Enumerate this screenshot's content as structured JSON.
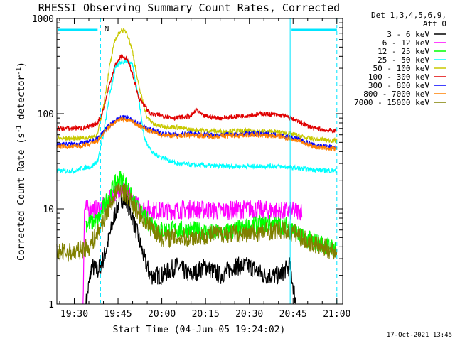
{
  "chart_data": {
    "type": "line",
    "title": "RHESSI Observing Summary Count Rates, Corrected",
    "xlabel": "Start Time (04-Jun-05 19:24:02)",
    "ylabel": "Corrected Count Rate (s",
    "ylabel_sup1": "-1",
    "ylabel_mid": " detector",
    "ylabel_sup2": "-1",
    "ylabel_end": ")",
    "y_scale": "log",
    "ylim": [
      1,
      1000
    ],
    "xlim": [
      "19:24:02",
      "21:02:00"
    ],
    "x_ticks": [
      "19:30",
      "19:45",
      "20:00",
      "20:15",
      "20:30",
      "20:45",
      "21:00"
    ],
    "y_ticks": [
      "1",
      "10",
      "100",
      "1000"
    ],
    "legend_header": [
      "Det 1,3,4,5,6,9,",
      "Att 0"
    ],
    "legend_position": "right",
    "annotations": {
      "attenuator_marker": "N",
      "timestamp": "17-Oct-2021 13:45"
    },
    "markers": {
      "dashed_verticals": [
        "19:39",
        "21:00"
      ],
      "solid_verticals": [
        "20:44"
      ],
      "top_bars": [
        [
          "19:24",
          "19:38"
        ],
        [
          "20:44",
          "21:00"
        ]
      ]
    },
    "series": [
      {
        "name": "3 - 6 keV",
        "color": "#000000",
        "points": [
          [
            "19:34",
            1.0
          ],
          [
            "19:36",
            2.5
          ],
          [
            "19:38",
            2.2
          ],
          [
            "19:40",
            3.0
          ],
          [
            "19:42",
            5.0
          ],
          [
            "19:44",
            9.0
          ],
          [
            "19:46",
            13.0
          ],
          [
            "19:48",
            12.0
          ],
          [
            "19:50",
            8.0
          ],
          [
            "19:52",
            5.0
          ],
          [
            "19:54",
            3.0
          ],
          [
            "19:56",
            2.0
          ],
          [
            "20:00",
            2.0
          ],
          [
            "20:05",
            2.5
          ],
          [
            "20:10",
            2.0
          ],
          [
            "20:15",
            2.5
          ],
          [
            "20:20",
            2.0
          ],
          [
            "20:25",
            2.5
          ],
          [
            "20:30",
            2.5
          ],
          [
            "20:35",
            2.0
          ],
          [
            "20:40",
            2.0
          ],
          [
            "20:44",
            2.5
          ],
          [
            "20:46",
            1.0
          ]
        ]
      },
      {
        "name": "6 - 12 keV",
        "color": "#ff00ff",
        "points": [
          [
            "19:33",
            1.0
          ],
          [
            "19:33.5",
            10.0
          ],
          [
            "19:38",
            10.0
          ],
          [
            "19:41",
            11.0
          ],
          [
            "19:44",
            15.0
          ],
          [
            "19:46",
            17.0
          ],
          [
            "19:48",
            15.0
          ],
          [
            "19:50",
            12.0
          ],
          [
            "19:53",
            10.0
          ],
          [
            "20:00",
            9.5
          ],
          [
            "20:10",
            10.0
          ],
          [
            "20:20",
            9.5
          ],
          [
            "20:30",
            10.0
          ],
          [
            "20:40",
            9.5
          ],
          [
            "20:48",
            9.5
          ]
        ]
      },
      {
        "name": "12 - 25 keV",
        "color": "#00ff00",
        "points": [
          [
            "19:34",
            7.0
          ],
          [
            "19:38",
            7.5
          ],
          [
            "19:41",
            12.0
          ],
          [
            "19:44",
            18.0
          ],
          [
            "19:46",
            21.0
          ],
          [
            "19:48",
            18.0
          ],
          [
            "19:50",
            12.0
          ],
          [
            "19:54",
            8.0
          ],
          [
            "20:00",
            6.0
          ],
          [
            "20:10",
            6.0
          ],
          [
            "20:20",
            5.5
          ],
          [
            "20:30",
            6.5
          ],
          [
            "20:37",
            7.0
          ],
          [
            "20:44",
            6.5
          ],
          [
            "20:48",
            5.0
          ],
          [
            "21:00",
            3.8
          ]
        ]
      },
      {
        "name": "25 - 50 keV",
        "color": "#00ffff",
        "points": [
          [
            "19:24",
            25
          ],
          [
            "19:30",
            25
          ],
          [
            "19:33",
            27
          ],
          [
            "19:36",
            28
          ],
          [
            "19:38",
            32
          ],
          [
            "19:40",
            60
          ],
          [
            "19:42",
            150
          ],
          [
            "19:44",
            300
          ],
          [
            "19:46",
            350
          ],
          [
            "19:48",
            360
          ],
          [
            "19:50",
            330
          ],
          [
            "19:52",
            150
          ],
          [
            "19:54",
            55
          ],
          [
            "19:57",
            38
          ],
          [
            "20:00",
            35
          ],
          [
            "20:05",
            30
          ],
          [
            "20:10",
            29
          ],
          [
            "20:20",
            28
          ],
          [
            "20:30",
            28
          ],
          [
            "20:40",
            28
          ],
          [
            "20:45",
            27
          ],
          [
            "20:50",
            26
          ],
          [
            "21:00",
            25
          ]
        ]
      },
      {
        "name": "50 - 100 keV",
        "color": "#c8c800",
        "points": [
          [
            "19:24",
            55
          ],
          [
            "19:30",
            55
          ],
          [
            "19:35",
            56
          ],
          [
            "19:38",
            60
          ],
          [
            "19:40",
            120
          ],
          [
            "19:42",
            300
          ],
          [
            "19:44",
            600
          ],
          [
            "19:46",
            760
          ],
          [
            "19:48",
            720
          ],
          [
            "19:50",
            450
          ],
          [
            "19:52",
            200
          ],
          [
            "19:55",
            90
          ],
          [
            "19:58",
            75
          ],
          [
            "20:05",
            72
          ],
          [
            "20:10",
            68
          ],
          [
            "20:20",
            65
          ],
          [
            "20:30",
            66
          ],
          [
            "20:40",
            64
          ],
          [
            "20:46",
            60
          ],
          [
            "20:50",
            55
          ],
          [
            "21:00",
            52
          ]
        ]
      },
      {
        "name": "100 - 300 keV",
        "color": "#e00000",
        "points": [
          [
            "19:24",
            70
          ],
          [
            "19:30",
            70
          ],
          [
            "19:35",
            72
          ],
          [
            "19:38",
            80
          ],
          [
            "19:40",
            110
          ],
          [
            "19:42",
            200
          ],
          [
            "19:44",
            320
          ],
          [
            "19:46",
            400
          ],
          [
            "19:48",
            380
          ],
          [
            "19:50",
            260
          ],
          [
            "19:52",
            150
          ],
          [
            "19:56",
            100
          ],
          [
            "20:00",
            95
          ],
          [
            "20:05",
            90
          ],
          [
            "20:10",
            95
          ],
          [
            "20:12",
            110
          ],
          [
            "20:14",
            95
          ],
          [
            "20:20",
            90
          ],
          [
            "20:28",
            95
          ],
          [
            "20:35",
            100
          ],
          [
            "20:42",
            95
          ],
          [
            "20:46",
            85
          ],
          [
            "20:52",
            70
          ],
          [
            "21:00",
            65
          ]
        ]
      },
      {
        "name": "300 - 800 keV",
        "color": "#0000ff",
        "points": [
          [
            "19:24",
            48
          ],
          [
            "19:30",
            48
          ],
          [
            "19:35",
            50
          ],
          [
            "19:38",
            55
          ],
          [
            "19:40",
            65
          ],
          [
            "19:43",
            80
          ],
          [
            "19:46",
            92
          ],
          [
            "19:49",
            88
          ],
          [
            "19:52",
            78
          ],
          [
            "19:55",
            70
          ],
          [
            "20:00",
            62
          ],
          [
            "20:05",
            60
          ],
          [
            "20:10",
            62
          ],
          [
            "20:15",
            60
          ],
          [
            "20:20",
            60
          ],
          [
            "20:30",
            62
          ],
          [
            "20:40",
            60
          ],
          [
            "20:46",
            55
          ],
          [
            "20:52",
            47
          ],
          [
            "21:00",
            44
          ]
        ]
      },
      {
        "name": "800 - 7000 keV",
        "color": "#ff8000",
        "points": [
          [
            "19:24",
            45
          ],
          [
            "19:30",
            45
          ],
          [
            "19:35",
            47
          ],
          [
            "19:38",
            52
          ],
          [
            "19:40",
            62
          ],
          [
            "19:43",
            78
          ],
          [
            "19:46",
            88
          ],
          [
            "19:49",
            85
          ],
          [
            "19:52",
            75
          ],
          [
            "19:55",
            67
          ],
          [
            "20:00",
            60
          ],
          [
            "20:05",
            58
          ],
          [
            "20:10",
            60
          ],
          [
            "20:15",
            58
          ],
          [
            "20:20",
            58
          ],
          [
            "20:30",
            60
          ],
          [
            "20:40",
            58
          ],
          [
            "20:46",
            53
          ],
          [
            "20:52",
            45
          ],
          [
            "21:00",
            42
          ]
        ]
      },
      {
        "name": "7000 - 15000 keV",
        "color": "#808000",
        "points": [
          [
            "19:24",
            3.5
          ],
          [
            "19:30",
            3.5
          ],
          [
            "19:35",
            4.0
          ],
          [
            "19:38",
            5.5
          ],
          [
            "19:41",
            9.0
          ],
          [
            "19:44",
            14.0
          ],
          [
            "19:46",
            16.0
          ],
          [
            "19:48",
            14.0
          ],
          [
            "19:51",
            10.0
          ],
          [
            "19:55",
            7.0
          ],
          [
            "20:00",
            5.0
          ],
          [
            "20:10",
            5.0
          ],
          [
            "20:20",
            5.5
          ],
          [
            "20:30",
            5.5
          ],
          [
            "20:40",
            6.0
          ],
          [
            "20:46",
            5.5
          ],
          [
            "20:50",
            4.5
          ],
          [
            "21:00",
            3.5
          ]
        ]
      }
    ]
  },
  "colors": {
    "axis": "#000000",
    "marker": "#00e5ff"
  }
}
